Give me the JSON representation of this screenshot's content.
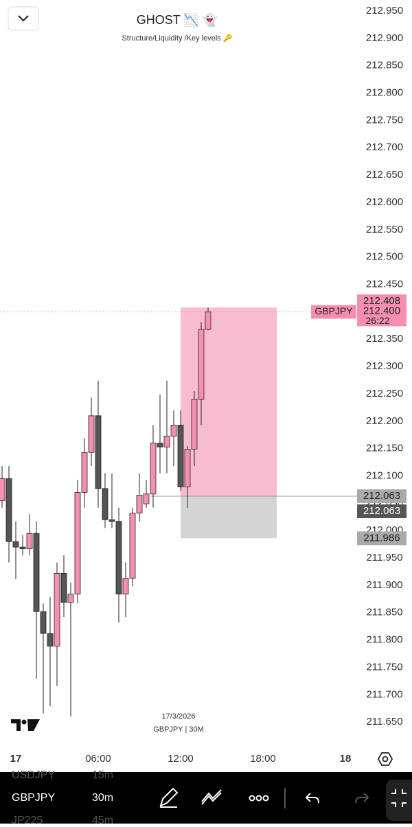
{
  "header": {
    "title": "GHOST 📉 👻",
    "subtitle": "Structure/Liquidity /Key levels 🔑"
  },
  "chart_data": {
    "type": "candlestick",
    "symbol": "GBPJPY",
    "watermark": {
      "date": "17/3/2026",
      "symbol": "GBPJPY | 30M"
    },
    "up_color": "#f48fb1",
    "down_color": "#555555",
    "xlim": [
      -1.15,
      24.85
    ],
    "xticks": [
      {
        "value": 0,
        "label": "17"
      },
      {
        "value": 6,
        "label": "06:00"
      },
      {
        "value": 12,
        "label": "12:00"
      },
      {
        "value": 18,
        "label": "18:00"
      },
      {
        "value": 24,
        "label": "18"
      }
    ],
    "ylim": [
      211.58,
      212.97
    ],
    "yticks": [
      {
        "value": 212.95,
        "label": "212.950"
      },
      {
        "value": 212.9,
        "label": "212.900"
      },
      {
        "value": 212.85,
        "label": "212.850"
      },
      {
        "value": 212.8,
        "label": "212.800"
      },
      {
        "value": 212.75,
        "label": "212.750"
      },
      {
        "value": 212.7,
        "label": "212.700"
      },
      {
        "value": 212.65,
        "label": "212.650"
      },
      {
        "value": 212.6,
        "label": "212.600"
      },
      {
        "value": 212.55,
        "label": "212.550"
      },
      {
        "value": 212.5,
        "label": "212.500"
      },
      {
        "value": 212.45,
        "label": "212.450"
      },
      {
        "value": 212.4,
        "label": "212.400"
      },
      {
        "value": 212.35,
        "label": "212.350"
      },
      {
        "value": 212.3,
        "label": "212.300"
      },
      {
        "value": 212.25,
        "label": "212.250"
      },
      {
        "value": 212.2,
        "label": "212.200"
      },
      {
        "value": 212.15,
        "label": "212.150"
      },
      {
        "value": 212.1,
        "label": "212.100"
      },
      {
        "value": 212.05,
        "label": "212.050"
      },
      {
        "value": 212.0,
        "label": "212.000"
      },
      {
        "value": 211.95,
        "label": "211.950"
      },
      {
        "value": 211.9,
        "label": "211.900"
      },
      {
        "value": 211.85,
        "label": "211.850"
      },
      {
        "value": 211.8,
        "label": "211.800"
      },
      {
        "value": 211.75,
        "label": "211.750"
      },
      {
        "value": 211.7,
        "label": "211.700"
      },
      {
        "value": 211.65,
        "label": "211.650"
      }
    ],
    "candles": [
      {
        "x": -1,
        "open": 212.055,
        "high": 212.118,
        "low": 212.042,
        "close": 212.095
      },
      {
        "x": -0.5,
        "open": 212.095,
        "high": 212.118,
        "low": 211.942,
        "close": 211.98
      },
      {
        "x": 0,
        "open": 211.98,
        "high": 212.017,
        "low": 211.911,
        "close": 211.97
      },
      {
        "x": 0.5,
        "open": 211.97,
        "high": 211.992,
        "low": 211.955,
        "close": 211.967
      },
      {
        "x": 1,
        "open": 211.967,
        "high": 212.03,
        "low": 211.955,
        "close": 211.995
      },
      {
        "x": 1.5,
        "open": 211.995,
        "high": 212.017,
        "low": 211.729,
        "close": 211.852
      },
      {
        "x": 2,
        "open": 211.852,
        "high": 211.867,
        "low": 211.666,
        "close": 211.812
      },
      {
        "x": 2.5,
        "open": 211.812,
        "high": 211.879,
        "low": 211.679,
        "close": 211.789
      },
      {
        "x": 3,
        "open": 211.789,
        "high": 211.942,
        "low": 211.716,
        "close": 211.922
      },
      {
        "x": 3.5,
        "open": 211.922,
        "high": 211.955,
        "low": 211.842,
        "close": 211.869
      },
      {
        "x": 4,
        "open": 211.869,
        "high": 211.905,
        "low": 211.66,
        "close": 211.884
      },
      {
        "x": 4.5,
        "open": 211.884,
        "high": 212.093,
        "low": 211.867,
        "close": 212.07
      },
      {
        "x": 5,
        "open": 212.07,
        "high": 212.168,
        "low": 212.042,
        "close": 212.143
      },
      {
        "x": 5.5,
        "open": 212.143,
        "high": 212.243,
        "low": 212.118,
        "close": 212.21
      },
      {
        "x": 6,
        "open": 212.21,
        "high": 212.274,
        "low": 212.042,
        "close": 212.077
      },
      {
        "x": 6.5,
        "open": 212.077,
        "high": 212.105,
        "low": 212.005,
        "close": 212.02
      },
      {
        "x": 7,
        "open": 212.02,
        "high": 212.105,
        "low": 212.005,
        "close": 212.017
      },
      {
        "x": 7.5,
        "open": 212.017,
        "high": 212.042,
        "low": 211.832,
        "close": 211.884
      },
      {
        "x": 8,
        "open": 211.884,
        "high": 211.942,
        "low": 211.842,
        "close": 211.913
      },
      {
        "x": 8.5,
        "open": 211.913,
        "high": 212.042,
        "low": 211.898,
        "close": 212.032
      },
      {
        "x": 9,
        "open": 212.032,
        "high": 212.105,
        "low": 212.017,
        "close": 212.065
      },
      {
        "x": 9.5,
        "open": 212.049,
        "high": 212.093,
        "low": 212.042,
        "close": 212.067
      },
      {
        "x": 10,
        "open": 212.067,
        "high": 212.193,
        "low": 212.042,
        "close": 212.16
      },
      {
        "x": 10.5,
        "open": 212.16,
        "high": 212.249,
        "low": 212.105,
        "close": 212.153
      },
      {
        "x": 11,
        "open": 212.153,
        "high": 212.274,
        "low": 212.105,
        "close": 212.173
      },
      {
        "x": 11.5,
        "open": 212.173,
        "high": 212.22,
        "low": 212.118,
        "close": 212.193
      },
      {
        "x": 12,
        "open": 212.193,
        "high": 212.22,
        "low": 212.072,
        "close": 212.08
      },
      {
        "x": 12.5,
        "open": 212.08,
        "high": 212.155,
        "low": 212.042,
        "close": 212.149
      },
      {
        "x": 13,
        "open": 212.149,
        "high": 212.255,
        "low": 212.118,
        "close": 212.24
      },
      {
        "x": 13.5,
        "open": 212.24,
        "high": 212.381,
        "low": 212.193,
        "close": 212.368
      },
      {
        "x": 14,
        "open": 212.368,
        "high": 212.408,
        "low": 212.366,
        "close": 212.4
      }
    ],
    "position": {
      "x_start": 12,
      "x_end": 19,
      "target": 212.408,
      "target_label": "212.408",
      "entry": 212.063,
      "entry_label": "212.063",
      "stop": 211.986,
      "stop_label": "211.986"
    },
    "last_price": {
      "value": 212.4,
      "label": "212.400",
      "countdown": "26:22"
    }
  },
  "watchlist": [
    {
      "symbol": "USDJPY",
      "interval": "15m"
    },
    {
      "symbol": "GBPJPY",
      "interval": "30m"
    },
    {
      "symbol": "JP225",
      "interval": "45m"
    }
  ]
}
